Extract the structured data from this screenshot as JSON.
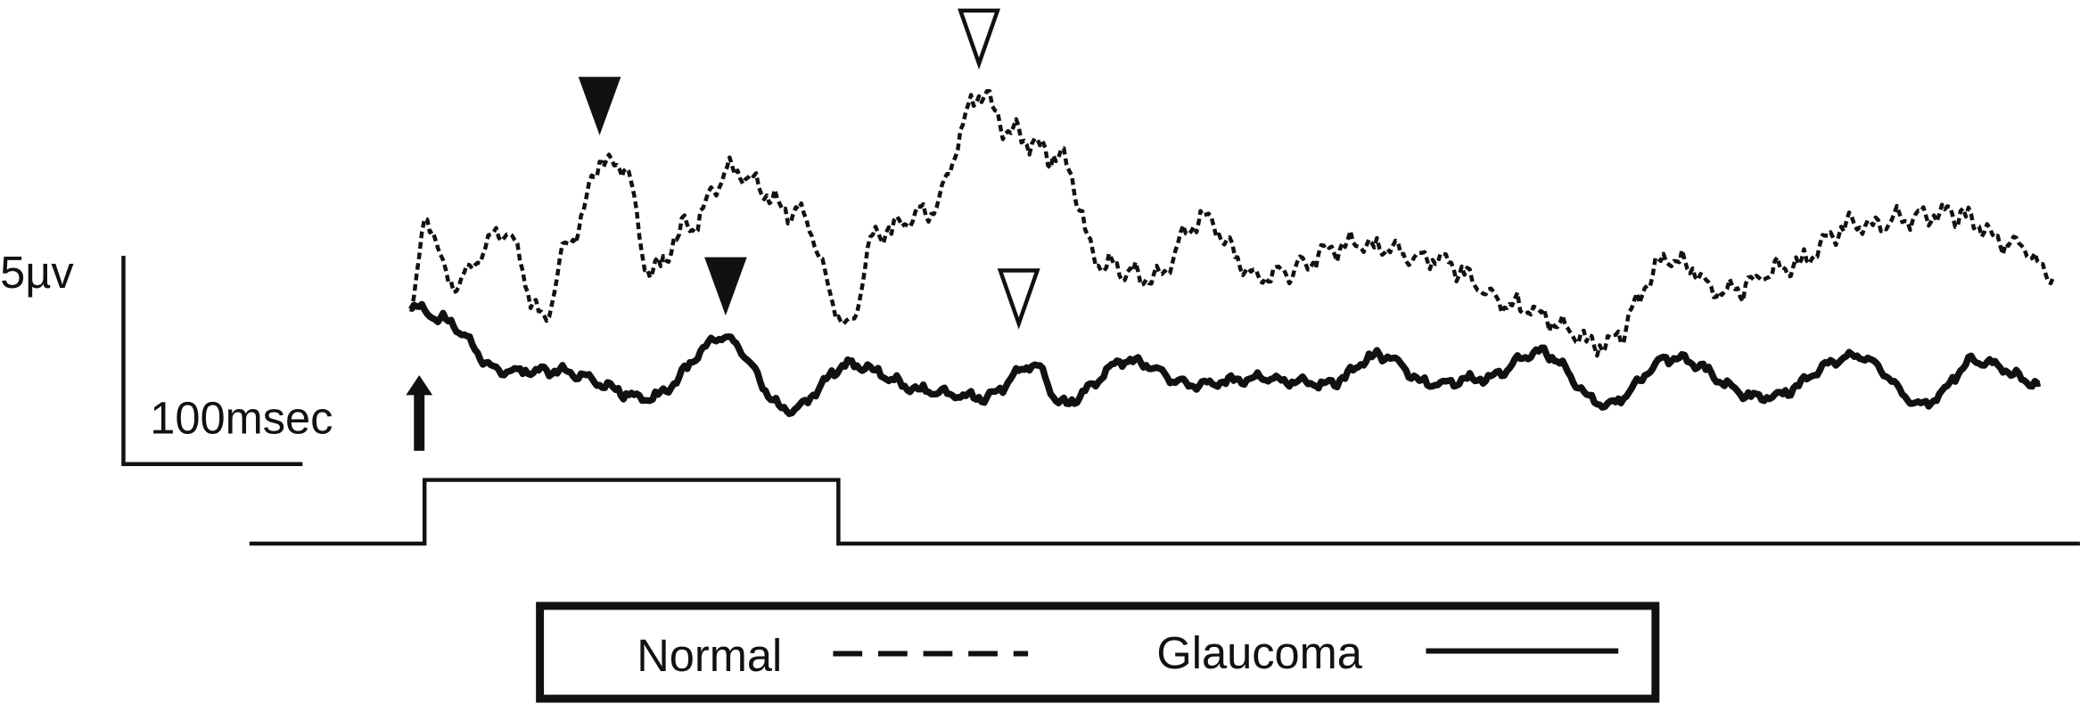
{
  "scale": {
    "amplitude": "5µv",
    "time": "100msec"
  },
  "legend": {
    "normal": "Normal",
    "glaucoma": "Glaucoma"
  }
}
